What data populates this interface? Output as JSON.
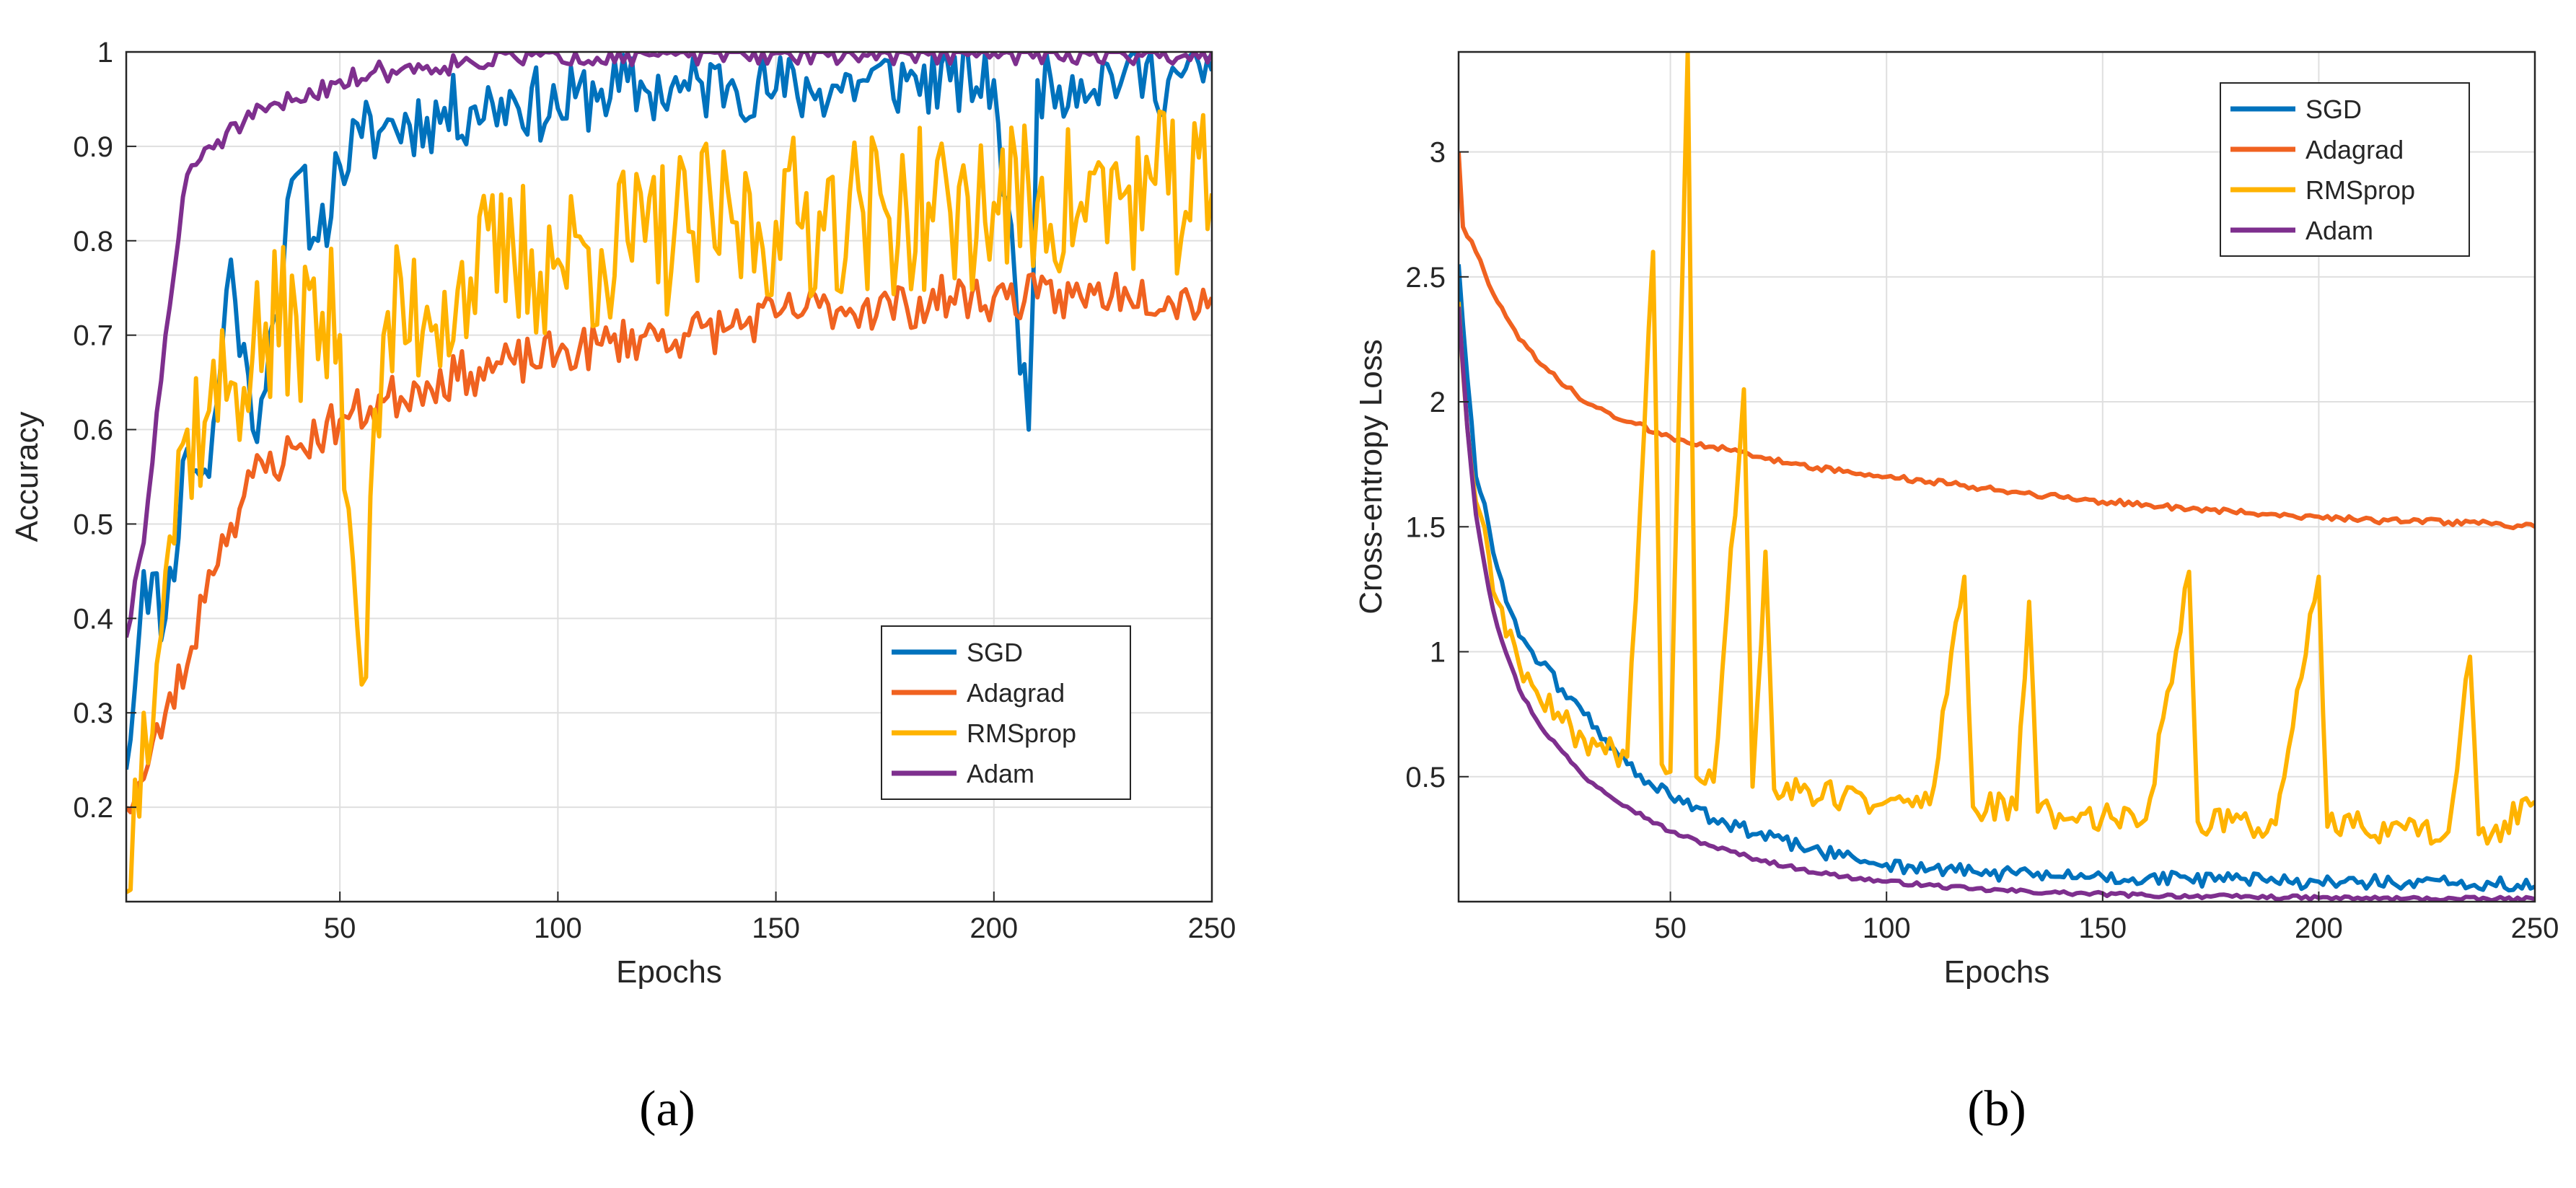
{
  "chart_data": [
    {
      "type": "line",
      "panel_label": "(a)",
      "xlabel": "Epochs",
      "ylabel": "Accuracy",
      "xlim": [
        1,
        250
      ],
      "ylim": [
        0.1,
        1
      ],
      "xticks": [
        50,
        100,
        150,
        200,
        250
      ],
      "yticks": [
        0.2,
        0.3,
        0.4,
        0.5,
        0.6,
        0.7,
        0.8,
        0.9,
        1
      ],
      "ytick_labels": [
        "0.2",
        "0.3",
        "0.4",
        "0.5",
        "0.6",
        "0.7",
        "0.8",
        "0.9",
        "1"
      ],
      "grid": true,
      "legend_position": "lower-right",
      "series": [
        {
          "name": "SGD",
          "color": "#0072BD",
          "points": [
            [
              1,
              0.24
            ],
            [
              5,
              0.45
            ],
            [
              10,
              0.4
            ],
            [
              15,
              0.58
            ],
            [
              20,
              0.55
            ],
            [
              25,
              0.78
            ],
            [
              30,
              0.6
            ],
            [
              35,
              0.72
            ],
            [
              40,
              0.87
            ],
            [
              45,
              0.8
            ],
            [
              50,
              0.88
            ],
            [
              55,
              0.91
            ],
            [
              60,
              0.92
            ],
            [
              70,
              0.93
            ],
            [
              80,
              0.94
            ],
            [
              90,
              0.95
            ],
            [
              100,
              0.94
            ],
            [
              110,
              0.96
            ],
            [
              120,
              0.96
            ],
            [
              130,
              0.96
            ],
            [
              140,
              0.97
            ],
            [
              150,
              0.96
            ],
            [
              160,
              0.96
            ],
            [
              170,
              0.97
            ],
            [
              180,
              0.97
            ],
            [
              190,
              0.97
            ],
            [
              200,
              0.97
            ],
            [
              208,
              0.6
            ],
            [
              210,
              0.97
            ],
            [
              220,
              0.97
            ],
            [
              230,
              0.98
            ],
            [
              240,
              0.97
            ],
            [
              250,
              0.98
            ]
          ],
          "noise": 0.04,
          "seed": 11
        },
        {
          "name": "Adagrad",
          "color": "#F06220",
          "points": [
            [
              1,
              0.2
            ],
            [
              5,
              0.23
            ],
            [
              10,
              0.3
            ],
            [
              15,
              0.35
            ],
            [
              20,
              0.45
            ],
            [
              25,
              0.5
            ],
            [
              30,
              0.55
            ],
            [
              40,
              0.58
            ],
            [
              50,
              0.61
            ],
            [
              60,
              0.63
            ],
            [
              70,
              0.65
            ],
            [
              80,
              0.66
            ],
            [
              90,
              0.67
            ],
            [
              100,
              0.68
            ],
            [
              110,
              0.69
            ],
            [
              120,
              0.7
            ],
            [
              130,
              0.7
            ],
            [
              140,
              0.71
            ],
            [
              150,
              0.72
            ],
            [
              160,
              0.73
            ],
            [
              170,
              0.73
            ],
            [
              180,
              0.73
            ],
            [
              190,
              0.74
            ],
            [
              200,
              0.74
            ],
            [
              210,
              0.74
            ],
            [
              220,
              0.74
            ],
            [
              230,
              0.75
            ],
            [
              240,
              0.74
            ],
            [
              250,
              0.74
            ]
          ],
          "noise": 0.025,
          "seed": 23
        },
        {
          "name": "RMSprop",
          "color": "#FFB300",
          "points": [
            [
              1,
              0.11
            ],
            [
              5,
              0.3
            ],
            [
              10,
              0.45
            ],
            [
              15,
              0.6
            ],
            [
              20,
              0.62
            ],
            [
              25,
              0.65
            ],
            [
              30,
              0.68
            ],
            [
              40,
              0.72
            ],
            [
              50,
              0.7
            ],
            [
              55,
              0.33
            ],
            [
              60,
              0.7
            ],
            [
              70,
              0.73
            ],
            [
              80,
              0.76
            ],
            [
              90,
              0.78
            ],
            [
              100,
              0.78
            ],
            [
              110,
              0.79
            ],
            [
              120,
              0.8
            ],
            [
              130,
              0.81
            ],
            [
              140,
              0.82
            ],
            [
              150,
              0.82
            ],
            [
              160,
              0.83
            ],
            [
              170,
              0.83
            ],
            [
              180,
              0.83
            ],
            [
              190,
              0.83
            ],
            [
              200,
              0.84
            ],
            [
              210,
              0.84
            ],
            [
              220,
              0.84
            ],
            [
              230,
              0.85
            ],
            [
              240,
              0.85
            ],
            [
              250,
              0.85
            ]
          ],
          "noise": 0.09,
          "seed": 37
        },
        {
          "name": "Adam",
          "color": "#7E2F8E",
          "points": [
            [
              1,
              0.38
            ],
            [
              5,
              0.48
            ],
            [
              10,
              0.7
            ],
            [
              15,
              0.87
            ],
            [
              20,
              0.9
            ],
            [
              30,
              0.93
            ],
            [
              40,
              0.95
            ],
            [
              50,
              0.97
            ],
            [
              60,
              0.98
            ],
            [
              70,
              0.985
            ],
            [
              80,
              0.99
            ],
            [
              90,
              0.995
            ],
            [
              100,
              0.997
            ],
            [
              120,
              0.998
            ],
            [
              150,
              0.999
            ],
            [
              200,
              0.999
            ],
            [
              250,
              0.999
            ]
          ],
          "noise": 0.012,
          "seed": 51
        }
      ]
    },
    {
      "type": "line",
      "panel_label": "(b)",
      "xlabel": "Epochs",
      "ylabel": "Cross-entropy Loss",
      "xlim": [
        1,
        250
      ],
      "ylim": [
        0,
        3.4
      ],
      "xticks": [
        50,
        100,
        150,
        200,
        250
      ],
      "yticks": [
        0.5,
        1,
        1.5,
        2,
        2.5,
        3
      ],
      "ytick_labels": [
        "0.5",
        "1",
        "1.5",
        "2",
        "2.5",
        "3"
      ],
      "grid": true,
      "legend_position": "top-right",
      "series": [
        {
          "name": "SGD",
          "color": "#0072BD",
          "points": [
            [
              1,
              2.55
            ],
            [
              3,
              2.1
            ],
            [
              5,
              1.7
            ],
            [
              8,
              1.5
            ],
            [
              12,
              1.2
            ],
            [
              16,
              1.05
            ],
            [
              20,
              0.95
            ],
            [
              25,
              0.85
            ],
            [
              30,
              0.75
            ],
            [
              35,
              0.65
            ],
            [
              40,
              0.55
            ],
            [
              45,
              0.48
            ],
            [
              50,
              0.42
            ],
            [
              60,
              0.33
            ],
            [
              70,
              0.27
            ],
            [
              80,
              0.22
            ],
            [
              90,
              0.18
            ],
            [
              100,
              0.15
            ],
            [
              110,
              0.13
            ],
            [
              120,
              0.12
            ],
            [
              130,
              0.11
            ],
            [
              140,
              0.1
            ],
            [
              150,
              0.1
            ],
            [
              160,
              0.09
            ],
            [
              170,
              0.09
            ],
            [
              180,
              0.09
            ],
            [
              190,
              0.08
            ],
            [
              200,
              0.08
            ],
            [
              210,
              0.08
            ],
            [
              220,
              0.07
            ],
            [
              230,
              0.07
            ],
            [
              240,
              0.07
            ],
            [
              250,
              0.06
            ]
          ],
          "noise": 0.03,
          "seed": 61
        },
        {
          "name": "Adagrad",
          "color": "#F06220",
          "points": [
            [
              1,
              3.0
            ],
            [
              2,
              2.7
            ],
            [
              5,
              2.6
            ],
            [
              10,
              2.4
            ],
            [
              15,
              2.25
            ],
            [
              20,
              2.15
            ],
            [
              30,
              2.0
            ],
            [
              40,
              1.92
            ],
            [
              50,
              1.86
            ],
            [
              60,
              1.82
            ],
            [
              70,
              1.78
            ],
            [
              80,
              1.75
            ],
            [
              90,
              1.72
            ],
            [
              100,
              1.7
            ],
            [
              110,
              1.68
            ],
            [
              120,
              1.66
            ],
            [
              130,
              1.64
            ],
            [
              140,
              1.62
            ],
            [
              150,
              1.6
            ],
            [
              160,
              1.59
            ],
            [
              170,
              1.57
            ],
            [
              180,
              1.56
            ],
            [
              190,
              1.55
            ],
            [
              200,
              1.54
            ],
            [
              210,
              1.53
            ],
            [
              220,
              1.52
            ],
            [
              230,
              1.52
            ],
            [
              240,
              1.51
            ],
            [
              250,
              1.5
            ]
          ],
          "noise": 0.012,
          "seed": 73
        },
        {
          "name": "RMSprop",
          "color": "#FFB300",
          "points": [
            [
              1,
              2.4
            ],
            [
              3,
              1.9
            ],
            [
              5,
              1.6
            ],
            [
              10,
              1.2
            ],
            [
              15,
              0.95
            ],
            [
              20,
              0.8
            ],
            [
              25,
              0.72
            ],
            [
              30,
              0.65
            ],
            [
              40,
              0.58
            ],
            [
              46,
              2.6
            ],
            [
              48,
              0.55
            ],
            [
              50,
              0.52
            ],
            [
              54,
              3.4
            ],
            [
              56,
              0.5
            ],
            [
              60,
              0.48
            ],
            [
              67,
              2.05
            ],
            [
              69,
              0.46
            ],
            [
              72,
              1.4
            ],
            [
              74,
              0.45
            ],
            [
              80,
              0.44
            ],
            [
              90,
              0.42
            ],
            [
              100,
              0.4
            ],
            [
              110,
              0.39
            ],
            [
              118,
              1.3
            ],
            [
              120,
              0.38
            ],
            [
              130,
              0.37
            ],
            [
              133,
              1.2
            ],
            [
              135,
              0.36
            ],
            [
              140,
              0.35
            ],
            [
              150,
              0.34
            ],
            [
              160,
              0.33
            ],
            [
              170,
              1.32
            ],
            [
              172,
              0.32
            ],
            [
              180,
              0.32
            ],
            [
              190,
              0.31
            ],
            [
              200,
              1.3
            ],
            [
              202,
              0.3
            ],
            [
              210,
              0.3
            ],
            [
              220,
              0.29
            ],
            [
              230,
              0.28
            ],
            [
              235,
              0.98
            ],
            [
              237,
              0.27
            ],
            [
              240,
              0.27
            ],
            [
              250,
              0.4
            ]
          ],
          "noise": 0.06,
          "seed": 89
        },
        {
          "name": "Adam",
          "color": "#7E2F8E",
          "points": [
            [
              1,
              2.38
            ],
            [
              3,
              1.9
            ],
            [
              5,
              1.55
            ],
            [
              8,
              1.25
            ],
            [
              10,
              1.1
            ],
            [
              15,
              0.85
            ],
            [
              20,
              0.7
            ],
            [
              25,
              0.6
            ],
            [
              30,
              0.5
            ],
            [
              40,
              0.38
            ],
            [
              50,
              0.28
            ],
            [
              60,
              0.22
            ],
            [
              70,
              0.17
            ],
            [
              80,
              0.13
            ],
            [
              90,
              0.1
            ],
            [
              100,
              0.08
            ],
            [
              120,
              0.05
            ],
            [
              140,
              0.035
            ],
            [
              160,
              0.025
            ],
            [
              180,
              0.02
            ],
            [
              200,
              0.015
            ],
            [
              220,
              0.012
            ],
            [
              250,
              0.01
            ]
          ],
          "noise": 0.008,
          "seed": 97
        }
      ]
    }
  ]
}
